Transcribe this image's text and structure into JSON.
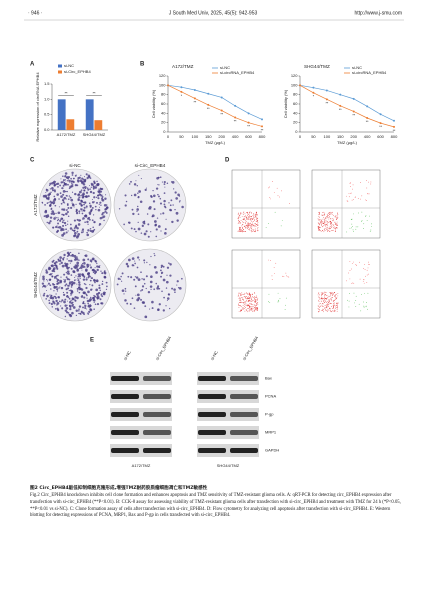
{
  "header": {
    "page": "· 946 ·",
    "journal": "J South Med Univ, 2025, 45(5): 942-953",
    "url": "http://www.j-smu.com"
  },
  "figure": {
    "panel_labels": [
      "A",
      "B",
      "C",
      "D",
      "E"
    ],
    "charts": [
      {
        "type": "bar",
        "ylabel": "Relative expression of circRNA EPHB4",
        "categories": [
          "A172/TMZ",
          "SHG44/TMZ"
        ],
        "series": [
          {
            "name": "si-NC",
            "color": "#4472c4",
            "values": [
              1.0,
              1.0
            ]
          },
          {
            "name": "si-Circ_EPHB4",
            "color": "#ed7d31",
            "values": [
              0.35,
              0.32
            ]
          }
        ],
        "ylim": [
          0,
          1.5
        ],
        "yticks": [
          {
            "value": 0,
            "label": "0.0"
          },
          {
            "value": 0.5,
            "label": "0.5"
          },
          {
            "value": 1,
            "label": "1.0"
          },
          {
            "value": 1.5,
            "label": "1.5"
          }
        ],
        "annotations": [
          "**",
          "**"
        ]
      },
      {
        "type": "line",
        "title": "A172/TMZ",
        "ylabel": "Cell viability (%)",
        "xlabel": "TMZ (μg/L)",
        "categories": [
          0,
          50,
          100,
          150,
          200,
          400,
          600,
          800
        ],
        "series": [
          {
            "name": "si-NC",
            "color": "#5b9bd5",
            "values": [
              100,
              96,
              90,
              82,
              74,
              56,
              40,
              27
            ]
          },
          {
            "name": "si-circRNA_EPHB4",
            "color": "#ed7d31",
            "values": [
              100,
              86,
              72,
              58,
              46,
              31,
              20,
              12
            ]
          }
        ],
        "ylim": [
          0,
          120
        ],
        "yticks": [
          0,
          20,
          40,
          60,
          80,
          100,
          120
        ],
        "sig": [
          null,
          "*",
          "**",
          "**",
          "**",
          "**",
          "**",
          "**"
        ]
      },
      {
        "type": "line",
        "title": "SHG44/TMZ",
        "ylabel": "Cell viability (%)",
        "xlabel": "TMZ (μg/L)",
        "categories": [
          0,
          50,
          100,
          150,
          200,
          400,
          600,
          800
        ],
        "series": [
          {
            "name": "si-NC",
            "color": "#5b9bd5",
            "values": [
              100,
              95,
              89,
              80,
              71,
              55,
              38,
              24
            ]
          },
          {
            "name": "si-circRNA_EPHB4",
            "color": "#ed7d31",
            "values": [
              100,
              84,
              70,
              56,
              44,
              30,
              19,
              11
            ]
          }
        ],
        "ylim": [
          0,
          120
        ],
        "yticks": [
          0,
          20,
          40,
          60,
          80,
          100,
          120
        ],
        "sig": [
          null,
          "*",
          "**",
          "**",
          "**",
          "**",
          "**",
          "**"
        ]
      }
    ],
    "clone": {
      "columns": [
        "si-NC",
        "si-Circ_EPHB4"
      ],
      "rows": [
        "A172/TMZ",
        "SHG44/TMZ"
      ]
    },
    "western": {
      "columns": [
        "si-NC",
        "si-Circ_EPHB4",
        "si-NC",
        "si-Circ_EPHB4"
      ],
      "proteins": [
        "Bax",
        "PCNA",
        "P-gp",
        "MRP1",
        "GAPDH"
      ],
      "cell_lines": [
        "A172/TMZ",
        "SHG44/TMZ"
      ]
    }
  },
  "caption": {
    "title_cn": "图2 Circ_EPHB4敲低抑制细胞克隆形成,增强TMZ耐药胶质瘤细胞凋亡和TMZ敏感性",
    "text_en": "Fig.2 Circ_EPHB4 knockdown inhibits cell clone formation and enhances apoptosis and TMZ sensitivity of TMZ-resistant glioma cells. A: qRT-PCR for detecting circ_EPHB4 expression after transfection with si-circ_EPHB4 (**P<0.01). B: CCK-8 assay for assessing viability of TMZ-resistant glioma cells after transfection with si-circ_EPHB4 and treatment with TMZ for 24 h (*P<0.05, **P<0.01 vs si-NC). C: Clone formation assay of cells after transfection with si-circ_EPHB4. D: Flow cytometry for analyzing cell apoptosis after transfection with si-circ_EPHB4. E: Western blotting for detecting expressions of PCNA, MRP1, Bax and P-gp in cells transfected with si-circ_EPHB4."
  }
}
